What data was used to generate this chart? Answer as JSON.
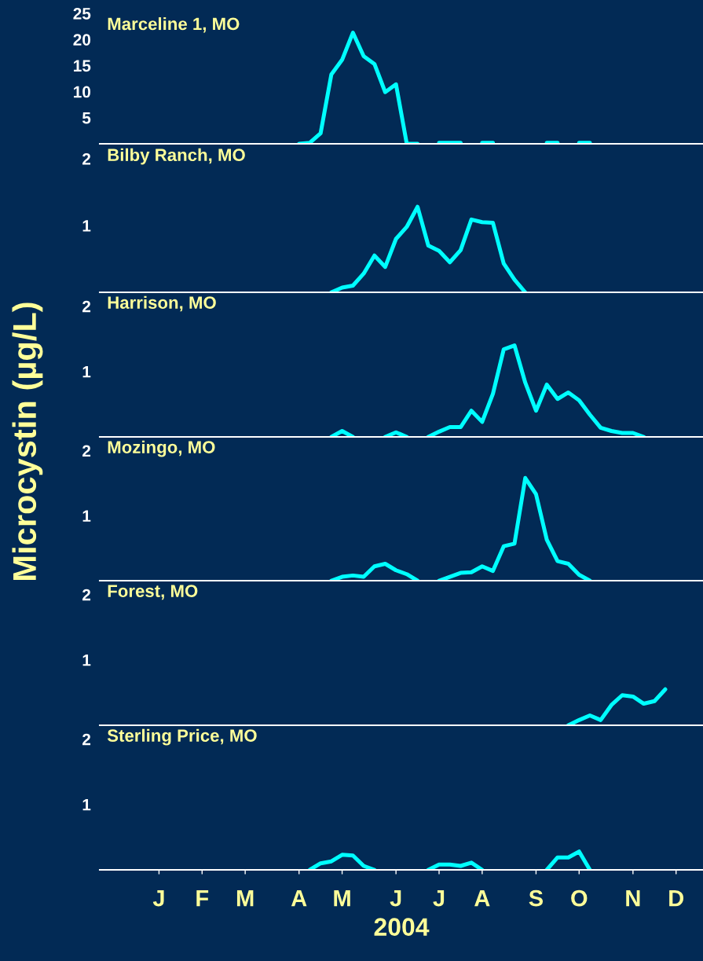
{
  "chart_data": [
    {
      "type": "line",
      "title": "Marceline 1, MO",
      "ylabel": "Microcystin (µg/L)",
      "ylim": [
        0,
        25
      ],
      "yticks": [
        5,
        10,
        15,
        20,
        25
      ],
      "categories": [
        null,
        null,
        null,
        null,
        null,
        null,
        null,
        null,
        null,
        null,
        null,
        null,
        null,
        null,
        null,
        null,
        null,
        null,
        null,
        null,
        null,
        null,
        null,
        null,
        null,
        null,
        null,
        null,
        null,
        null,
        null,
        null,
        null,
        null,
        null,
        null,
        null,
        null,
        null,
        null,
        null,
        null,
        null,
        null,
        null,
        null,
        null,
        null,
        null,
        null,
        null,
        null,
        null,
        null,
        null,
        null
      ],
      "series": [
        {
          "color": "#00ffff",
          "values": [
            null,
            null,
            null,
            null,
            null,
            null,
            null,
            null,
            null,
            null,
            null,
            null,
            null,
            null,
            null,
            null,
            null,
            null,
            0,
            0.2,
            2.0,
            13.3,
            16.1,
            21.3,
            16.8,
            15.3,
            9.9,
            11.4,
            0,
            0,
            null,
            0.2,
            0.2,
            0.2,
            null,
            0.2,
            0.2,
            null,
            null,
            null,
            null,
            0.2,
            0.2,
            null,
            0.2,
            0.2,
            null,
            null,
            null,
            null,
            null,
            null,
            null,
            null,
            null,
            null
          ]
        }
      ]
    },
    {
      "type": "line",
      "title": "Bilby Ranch, MO",
      "ylim": [
        0,
        2.2
      ],
      "yticks": [
        1,
        2
      ],
      "categories": [
        null,
        null,
        null,
        null,
        null,
        null,
        null,
        null,
        null,
        null,
        null,
        null,
        null,
        null,
        null,
        null,
        null,
        null,
        null,
        null,
        null,
        null,
        null,
        null,
        null,
        null,
        null,
        null,
        null,
        null,
        null,
        null,
        null,
        null,
        null,
        null,
        null,
        null,
        null,
        null,
        null,
        null,
        null,
        null,
        null,
        null,
        null,
        null,
        null,
        null,
        null,
        null,
        null,
        null,
        null,
        null
      ],
      "series": [
        {
          "color": "#00ffff",
          "values": [
            null,
            null,
            null,
            null,
            null,
            null,
            null,
            null,
            null,
            null,
            null,
            null,
            null,
            null,
            null,
            null,
            null,
            null,
            null,
            null,
            null,
            0,
            0.07,
            0.1,
            0.28,
            0.55,
            0.38,
            0.8,
            0.98,
            1.28,
            0.7,
            0.62,
            0.45,
            0.63,
            1.09,
            1.05,
            1.04,
            0.43,
            0.19,
            0,
            null,
            null,
            null,
            null,
            null,
            null,
            null,
            null,
            null,
            null,
            null,
            null,
            null,
            null,
            null,
            null
          ]
        }
      ]
    },
    {
      "type": "line",
      "title": "Harrison, MO",
      "ylim": [
        0,
        2.2
      ],
      "yticks": [
        1,
        2
      ],
      "categories": [
        null,
        null,
        null,
        null,
        null,
        null,
        null,
        null,
        null,
        null,
        null,
        null,
        null,
        null,
        null,
        null,
        null,
        null,
        null,
        null,
        null,
        null,
        null,
        null,
        null,
        null,
        null,
        null,
        null,
        null,
        null,
        null,
        null,
        null,
        null,
        null,
        null,
        null,
        null,
        null,
        null,
        null,
        null,
        null,
        null,
        null,
        null,
        null,
        null,
        null,
        null,
        null,
        null,
        null,
        null,
        null
      ],
      "series": [
        {
          "color": "#00ffff",
          "values": [
            null,
            null,
            null,
            null,
            null,
            null,
            null,
            null,
            null,
            null,
            null,
            null,
            null,
            null,
            null,
            null,
            null,
            null,
            null,
            null,
            null,
            0,
            0.09,
            0,
            null,
            null,
            0,
            0.07,
            0,
            null,
            0,
            0.08,
            0.15,
            0.15,
            0.4,
            0.23,
            0.66,
            1.34,
            1.4,
            0.83,
            0.4,
            0.8,
            0.58,
            0.68,
            0.56,
            0.34,
            0.14,
            0.09,
            0.06,
            0.06,
            0,
            null,
            null,
            null,
            null,
            null
          ]
        }
      ]
    },
    {
      "type": "line",
      "title": "Mozingo, MO",
      "ylim": [
        0,
        2.2
      ],
      "yticks": [
        1,
        2
      ],
      "categories": [
        null,
        null,
        null,
        null,
        null,
        null,
        null,
        null,
        null,
        null,
        null,
        null,
        null,
        null,
        null,
        null,
        null,
        null,
        null,
        null,
        null,
        null,
        null,
        null,
        null,
        null,
        null,
        null,
        null,
        null,
        null,
        null,
        null,
        null,
        null,
        null,
        null,
        null,
        null,
        null,
        null,
        null,
        null,
        null,
        null,
        null,
        null,
        null,
        null,
        null,
        null,
        null,
        null,
        null,
        null,
        null
      ],
      "series": [
        {
          "color": "#00ffff",
          "values": [
            null,
            null,
            null,
            null,
            null,
            null,
            null,
            null,
            null,
            null,
            null,
            null,
            null,
            null,
            null,
            null,
            null,
            null,
            null,
            null,
            null,
            0,
            0.06,
            0.08,
            0.06,
            0.22,
            0.26,
            0.16,
            0.1,
            0,
            null,
            0,
            0.06,
            0.12,
            0.13,
            0.22,
            0.15,
            0.53,
            0.57,
            1.58,
            1.33,
            0.63,
            0.3,
            0.26,
            0.09,
            0,
            null,
            null,
            null,
            null,
            null,
            null,
            null,
            null,
            null,
            null
          ]
        }
      ]
    },
    {
      "type": "line",
      "title": "Forest, MO",
      "ylim": [
        0,
        2.2
      ],
      "yticks": [
        1,
        2
      ],
      "categories": [
        null,
        null,
        null,
        null,
        null,
        null,
        null,
        null,
        null,
        null,
        null,
        null,
        null,
        null,
        null,
        null,
        null,
        null,
        null,
        null,
        null,
        null,
        null,
        null,
        null,
        null,
        null,
        null,
        null,
        null,
        null,
        null,
        null,
        null,
        null,
        null,
        null,
        null,
        null,
        null,
        null,
        null,
        null,
        null,
        null,
        null,
        null,
        null,
        null,
        null,
        null,
        null,
        null,
        null,
        null,
        null
      ],
      "series": [
        {
          "color": "#00ffff",
          "values": [
            null,
            null,
            null,
            null,
            null,
            null,
            null,
            null,
            null,
            null,
            null,
            null,
            null,
            null,
            null,
            null,
            null,
            null,
            null,
            null,
            null,
            null,
            null,
            null,
            null,
            null,
            null,
            null,
            null,
            null,
            null,
            null,
            null,
            null,
            null,
            null,
            null,
            null,
            null,
            null,
            null,
            null,
            null,
            0,
            0.08,
            0.15,
            0.08,
            0.31,
            0.46,
            0.44,
            0.33,
            0.37,
            0.55,
            null,
            null,
            null
          ]
        }
      ]
    },
    {
      "type": "line",
      "title": "Sterling Price, MO",
      "xlabel": "2004",
      "ylim": [
        0,
        2.2
      ],
      "yticks": [
        1,
        2
      ],
      "categories": [
        null,
        null,
        null,
        null,
        null,
        "J",
        null,
        null,
        null,
        "F",
        null,
        null,
        null,
        "M",
        null,
        null,
        null,
        null,
        "A",
        null,
        null,
        null,
        "M",
        null,
        null,
        null,
        null,
        "J",
        null,
        null,
        null,
        "J",
        null,
        null,
        null,
        "A",
        null,
        null,
        null,
        null,
        "S",
        null,
        null,
        null,
        "O",
        null,
        null,
        null,
        null,
        "N",
        null,
        null,
        null,
        "D",
        null,
        null
      ],
      "series": [
        {
          "color": "#00ffff",
          "values": [
            null,
            null,
            null,
            null,
            null,
            null,
            null,
            null,
            null,
            null,
            null,
            null,
            null,
            null,
            null,
            null,
            null,
            null,
            null,
            0,
            0.1,
            0.13,
            0.23,
            0.22,
            0.06,
            0,
            null,
            null,
            null,
            null,
            0,
            0.08,
            0.08,
            0.06,
            0.11,
            0,
            null,
            null,
            null,
            null,
            null,
            0,
            0.19,
            0.19,
            0.28,
            0,
            null,
            null,
            null,
            null,
            null,
            null,
            null,
            null,
            null,
            null
          ]
        }
      ]
    }
  ]
}
